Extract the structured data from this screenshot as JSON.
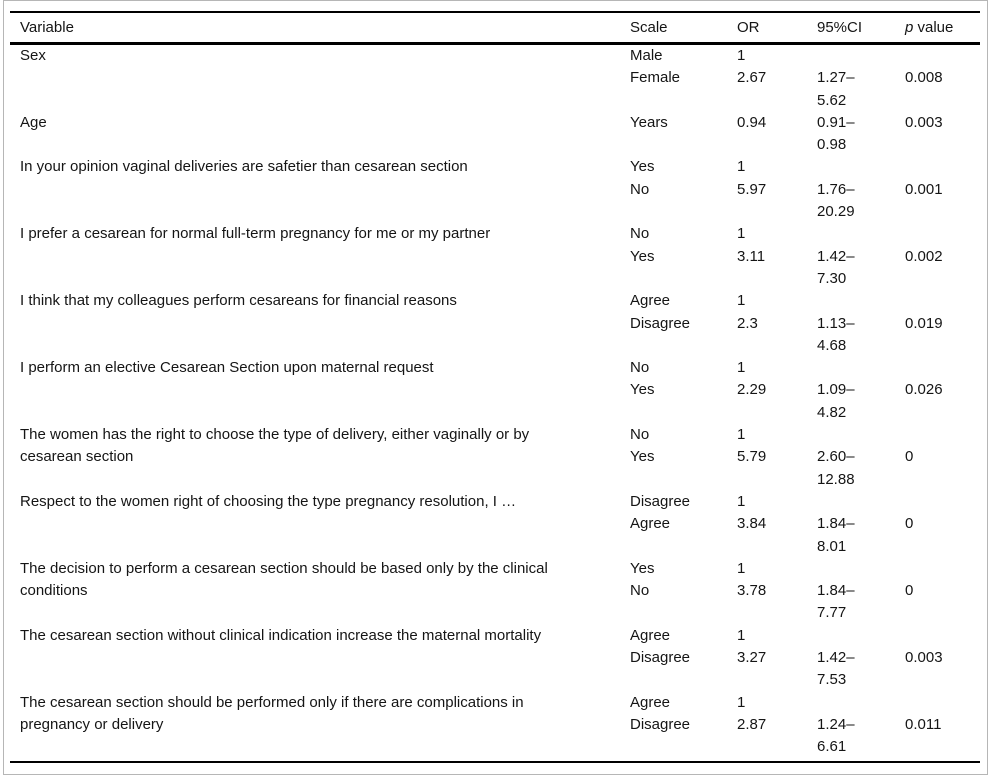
{
  "figure": {
    "frame_color": "#b6b6b6",
    "rule_color": "#000000",
    "text_color": "#151515"
  },
  "table": {
    "header": {
      "variable": "Variable",
      "scale": "Scale",
      "or": "OR",
      "ci": "95%CI",
      "p_italic": "p",
      "p_rest": " value"
    },
    "groups": [
      {
        "variable": "Sex",
        "rows": [
          {
            "scale": "Male",
            "or": "1",
            "ci": "",
            "p": ""
          },
          {
            "scale": "Female",
            "or": "2.67",
            "ci": "1.27–\n5.62",
            "p": "0.008"
          }
        ]
      },
      {
        "variable": "Age",
        "rows": [
          {
            "scale": "Years",
            "or": "0.94",
            "ci": "0.91–\n0.98",
            "p": "0.003"
          }
        ]
      },
      {
        "variable": "In your opinion vaginal deliveries are safetier than cesarean section",
        "rows": [
          {
            "scale": "Yes",
            "or": "1",
            "ci": "",
            "p": ""
          },
          {
            "scale": "No",
            "or": "5.97",
            "ci": "1.76–\n20.29",
            "p": "0.001"
          }
        ]
      },
      {
        "variable": "I prefer a cesarean for normal full-term pregnancy for me or my partner",
        "rows": [
          {
            "scale": "No",
            "or": "1",
            "ci": "",
            "p": ""
          },
          {
            "scale": "Yes",
            "or": "3.11",
            "ci": "1.42–\n7.30",
            "p": "0.002"
          }
        ]
      },
      {
        "variable": "I think that my colleagues perform cesareans for financial reasons",
        "rows": [
          {
            "scale": "Agree",
            "or": "1",
            "ci": "",
            "p": ""
          },
          {
            "scale": "Disagree",
            "or": "2.3",
            "ci": "1.13–\n4.68",
            "p": "0.019"
          }
        ]
      },
      {
        "variable": "I perform an elective Cesarean Section upon maternal request",
        "rows": [
          {
            "scale": "No",
            "or": "1",
            "ci": "",
            "p": ""
          },
          {
            "scale": "Yes",
            "or": "2.29",
            "ci": "1.09–\n4.82",
            "p": "0.026"
          }
        ]
      },
      {
        "variable": "The women has the right to choose the type of delivery, either vaginally or by\ncesarean section",
        "rows": [
          {
            "scale": "No",
            "or": "1",
            "ci": "",
            "p": ""
          },
          {
            "scale": "Yes",
            "or": "5.79",
            "ci": "2.60–\n12.88",
            "p": "0"
          }
        ]
      },
      {
        "variable": "Respect to the women right of choosing the type pregnancy resolution, I …",
        "rows": [
          {
            "scale": "Disagree",
            "or": "1",
            "ci": "",
            "p": ""
          },
          {
            "scale": "Agree",
            "or": "3.84",
            "ci": "1.84–\n8.01",
            "p": "0"
          }
        ]
      },
      {
        "variable": "The decision to perform a cesarean section should be based only by the clinical\nconditions",
        "rows": [
          {
            "scale": "Yes",
            "or": "1",
            "ci": "",
            "p": ""
          },
          {
            "scale": "No",
            "or": "3.78",
            "ci": "1.84–\n7.77",
            "p": "0"
          }
        ]
      },
      {
        "variable": "The cesarean section without clinical indication increase the maternal mortality",
        "rows": [
          {
            "scale": "Agree",
            "or": "1",
            "ci": "",
            "p": ""
          },
          {
            "scale": "Disagree",
            "or": "3.27",
            "ci": "1.42–\n7.53",
            "p": "0.003"
          }
        ]
      },
      {
        "variable": "The cesarean section should be performed only if there are complications in\npregnancy or delivery",
        "rows": [
          {
            "scale": "Agree",
            "or": "1",
            "ci": "",
            "p": ""
          },
          {
            "scale": "Disagree",
            "or": "2.87",
            "ci": "1.24–\n6.61",
            "p": "0.011"
          }
        ]
      }
    ]
  }
}
